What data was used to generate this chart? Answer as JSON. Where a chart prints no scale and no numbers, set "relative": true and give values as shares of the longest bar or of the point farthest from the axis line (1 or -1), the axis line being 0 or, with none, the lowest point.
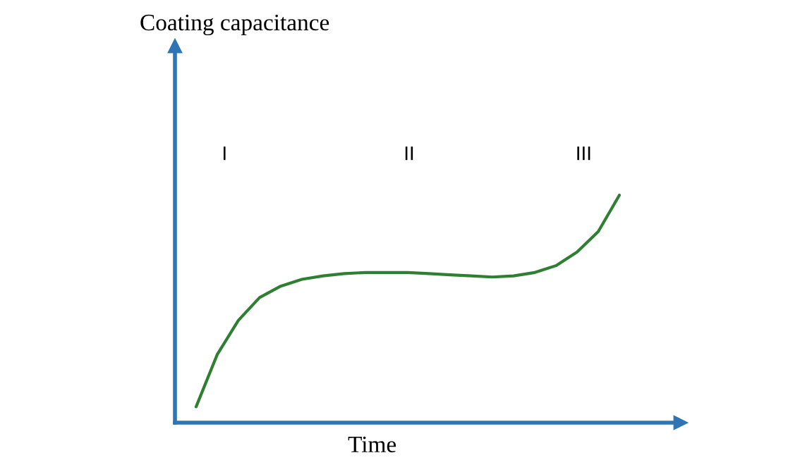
{
  "chart_data": {
    "type": "line",
    "relative": true,
    "xlabel": "Time",
    "categories": [
      null,
      null,
      null,
      null,
      null,
      null,
      null,
      null,
      null,
      null,
      null,
      null,
      null,
      null,
      null,
      null,
      null,
      null,
      null,
      null,
      null
    ],
    "series": [
      {
        "color": "#2f7f32",
        "values": [
          0.07,
          0.3,
          0.45,
          0.55,
          0.6,
          0.63,
          0.645,
          0.655,
          0.66,
          0.66,
          0.66,
          0.655,
          0.65,
          0.645,
          0.64,
          0.645,
          0.66,
          0.69,
          0.75,
          0.84,
          1.0
        ]
      }
    ],
    "annotations": [
      "Coating capacitance",
      "I",
      "II",
      "III"
    ],
    "grid": false,
    "marker": "none",
    "line_style": "solid"
  }
}
